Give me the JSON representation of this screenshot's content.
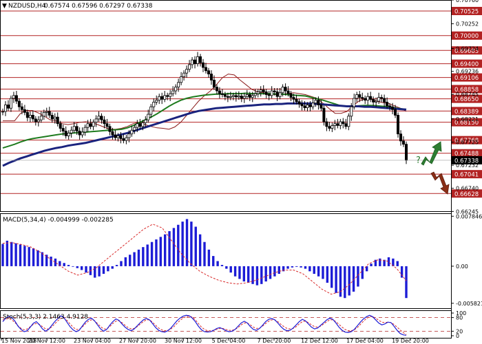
{
  "header": {
    "symbol": "NZDUSD,H4",
    "ohlc": "0.67574 0.67596 0.67297 0.67338"
  },
  "colors": {
    "up_candle": "#ffffff",
    "down_candle": "#000000",
    "ma_fast": "#8b1a1a",
    "ma_mid": "#1e7b1e",
    "ma_slow": "#1a237e",
    "level_line": "#b22222",
    "macd_hist": "#1c1cd6",
    "macd_signal": "#d92b2b",
    "stoch_main": "#1c1cd6",
    "stoch_signal": "#d92b2b",
    "arrow_up": "#2e7d32",
    "arrow_down": "#8b2e16",
    "price_tag": "#000000"
  },
  "chart_data": [
    {
      "type": "candlestick",
      "title": "NZDUSD,H4",
      "ylim": [
        0.6625,
        0.7076
      ],
      "price_ticks": [
        "0.70760",
        "0.70252",
        "0.69724",
        "0.69236",
        "0.68745",
        "0.68221",
        "0.67725",
        "0.67232",
        "0.66740",
        "0.66245"
      ],
      "resistance_levels": [
        "0.70525",
        "0.70000",
        "0.69683",
        "0.69400",
        "0.69106",
        "0.68858",
        "0.68650",
        "0.68389",
        "0.68150",
        "0.67768",
        "0.67488",
        "0.67041",
        "0.66628"
      ],
      "current_price": "0.67338",
      "x_labels": [
        "15 Nov 2018",
        "20 Nov 12:00",
        "23 Nov 04:00",
        "27 Nov 20:00",
        "30 Nov 12:00",
        "5 Dec 04:00",
        "7 Dec 20:00",
        "12 Dec 12:00",
        "17 Dec 04:00",
        "19 Dec 20:00"
      ],
      "forecast": {
        "up_label": "?",
        "scenarios": [
          "up",
          "down"
        ]
      },
      "series": [
        {
          "name": "close",
          "values": [
            0.6838,
            0.6852,
            0.6845,
            0.6866,
            0.6872,
            0.686,
            0.6848,
            0.6842,
            0.6836,
            0.6825,
            0.683,
            0.6822,
            0.6816,
            0.682,
            0.6828,
            0.6836,
            0.6838,
            0.683,
            0.6822,
            0.6826,
            0.6812,
            0.6802,
            0.6796,
            0.6786,
            0.6792,
            0.6798,
            0.6806,
            0.6796,
            0.6788,
            0.6794,
            0.6804,
            0.6812,
            0.6806,
            0.6815,
            0.6822,
            0.6828,
            0.682,
            0.6812,
            0.6806,
            0.6795,
            0.6788,
            0.6782,
            0.6786,
            0.678,
            0.6776,
            0.6782,
            0.679,
            0.6798,
            0.6804,
            0.6812,
            0.6806,
            0.6814,
            0.682,
            0.6832,
            0.6848,
            0.6858,
            0.6862,
            0.687,
            0.6864,
            0.6872,
            0.687,
            0.6876,
            0.6882,
            0.689,
            0.69,
            0.6912,
            0.692,
            0.6928,
            0.6938,
            0.6948,
            0.694,
            0.6955,
            0.6942,
            0.6932,
            0.6925,
            0.6918,
            0.6905,
            0.689,
            0.6882,
            0.6876,
            0.6874,
            0.687,
            0.6868,
            0.687,
            0.6872,
            0.6869,
            0.6871,
            0.6866,
            0.687,
            0.6874,
            0.6868,
            0.6872,
            0.6876,
            0.688,
            0.6884,
            0.688,
            0.6874,
            0.6872,
            0.6882,
            0.688,
            0.687,
            0.6878,
            0.689,
            0.6882,
            0.6876,
            0.6868,
            0.6864,
            0.6859,
            0.6854,
            0.685,
            0.6846,
            0.6852,
            0.6848,
            0.6856,
            0.6862,
            0.6852,
            0.6845,
            0.6816,
            0.6806,
            0.6802,
            0.6808,
            0.6812,
            0.6808,
            0.6816,
            0.6812,
            0.6806,
            0.6828,
            0.6848,
            0.6866,
            0.6874,
            0.6868,
            0.6866,
            0.6862,
            0.687,
            0.6864,
            0.6858,
            0.686,
            0.6868,
            0.6866,
            0.6858,
            0.685,
            0.6848,
            0.6842,
            0.683,
            0.679,
            0.6775,
            0.6768,
            0.67338
          ]
        },
        {
          "name": "MA fast",
          "values": [
            0.6818,
            0.6818,
            0.6818,
            0.6834,
            0.684,
            0.684,
            0.6835,
            0.6828,
            0.682,
            0.6818,
            0.6812,
            0.681,
            0.6812,
            0.6815,
            0.6816,
            0.6814,
            0.681,
            0.6805,
            0.68,
            0.68,
            0.6802,
            0.6806,
            0.6812,
            0.6815,
            0.681,
            0.6806,
            0.6803,
            0.6802,
            0.68,
            0.6805,
            0.6815,
            0.683,
            0.6845,
            0.686,
            0.6872,
            0.6882,
            0.6895,
            0.691,
            0.6918,
            0.6916,
            0.6905,
            0.6895,
            0.6885,
            0.688,
            0.6878,
            0.6875,
            0.6874,
            0.6875,
            0.6876,
            0.6878,
            0.6876,
            0.6874,
            0.687,
            0.6866,
            0.6855,
            0.6844,
            0.6834,
            0.6834,
            0.6838,
            0.685,
            0.686,
            0.6865,
            0.6864,
            0.686,
            0.6857,
            0.6855,
            0.685,
            0.6845,
            0.6838
          ]
        },
        {
          "name": "MA mid",
          "values": [
            0.676,
            0.6764,
            0.6768,
            0.6773,
            0.6777,
            0.678,
            0.6782,
            0.6784,
            0.6786,
            0.6788,
            0.679,
            0.6791,
            0.6792,
            0.6793,
            0.6794,
            0.6795,
            0.6796,
            0.6797,
            0.6798,
            0.6799,
            0.68,
            0.6803,
            0.6808,
            0.6814,
            0.682,
            0.6826,
            0.6833,
            0.6841,
            0.6849,
            0.6856,
            0.6862,
            0.6866,
            0.6869,
            0.6871,
            0.6873,
            0.6874,
            0.6875,
            0.6875,
            0.6876,
            0.6876,
            0.6876,
            0.6877,
            0.6876,
            0.6876,
            0.6876,
            0.6876,
            0.6875,
            0.6875,
            0.6874,
            0.6873,
            0.6872,
            0.6871,
            0.6868,
            0.6865,
            0.6862,
            0.6858,
            0.6854,
            0.685,
            0.6849,
            0.6849,
            0.685,
            0.6851,
            0.6851,
            0.685,
            0.6849,
            0.6848,
            0.6846,
            0.6844,
            0.6842
          ]
        },
        {
          "name": "MA slow",
          "values": [
            0.6722,
            0.6728,
            0.6733,
            0.6738,
            0.6742,
            0.6746,
            0.675,
            0.6754,
            0.6757,
            0.676,
            0.6762,
            0.6765,
            0.6767,
            0.6769,
            0.6771,
            0.6774,
            0.6777,
            0.678,
            0.6783,
            0.6786,
            0.6789,
            0.6792,
            0.6796,
            0.68,
            0.6804,
            0.6808,
            0.6812,
            0.6816,
            0.682,
            0.6824,
            0.6828,
            0.6832,
            0.6836,
            0.6839,
            0.6841,
            0.6843,
            0.6845,
            0.6846,
            0.6847,
            0.6848,
            0.6849,
            0.685,
            0.6851,
            0.6852,
            0.6853,
            0.6853,
            0.6854,
            0.6854,
            0.6855,
            0.6855,
            0.6855,
            0.6855,
            0.6855,
            0.6854,
            0.6853,
            0.6852,
            0.6851,
            0.685,
            0.6849,
            0.6849,
            0.6849,
            0.6848,
            0.6848,
            0.6847,
            0.6846,
            0.6845,
            0.6844,
            0.6843,
            0.6842
          ]
        }
      ]
    },
    {
      "type": "bar",
      "title": "MACD(5,34,4) -0.004999 -0.002285",
      "ylim": [
        -0.0066,
        0.0082
      ],
      "ticks": [
        "0.007846",
        "0.00",
        "-0.005821"
      ],
      "series": [
        {
          "name": "histogram",
          "values": [
            0.0035,
            0.004,
            0.0038,
            0.0036,
            0.0034,
            0.0032,
            0.003,
            0.0028,
            0.0025,
            0.0022,
            0.0018,
            0.0015,
            0.0012,
            0.0008,
            0.0005,
            0.0002,
            0.0,
            -0.0003,
            -0.0006,
            -0.001,
            -0.0014,
            -0.0018,
            -0.0016,
            -0.0012,
            -0.0008,
            -0.0004,
            0.0002,
            0.0008,
            0.0014,
            0.0018,
            0.0022,
            0.0026,
            0.003,
            0.0034,
            0.0038,
            0.0042,
            0.0046,
            0.005,
            0.0055,
            0.006,
            0.0065,
            0.007,
            0.0074,
            0.007,
            0.0062,
            0.005,
            0.0038,
            0.0026,
            0.0016,
            0.0008,
            0.0002,
            -0.0004,
            -0.001,
            -0.0016,
            -0.002,
            -0.0024,
            -0.0026,
            -0.0028,
            -0.003,
            -0.0028,
            -0.0024,
            -0.002,
            -0.0016,
            -0.0012,
            -0.0008,
            -0.0004,
            -0.0002,
            -0.0001,
            -0.0002,
            -0.0004,
            -0.0008,
            -0.0012,
            -0.0016,
            -0.002,
            -0.0026,
            -0.0034,
            -0.0042,
            -0.0048,
            -0.005,
            -0.0046,
            -0.004,
            -0.0032,
            -0.002,
            -0.0008,
            0.0004,
            0.001,
            0.0012,
            0.001,
            0.0014,
            0.0012,
            0.0008,
            -0.0018,
            -0.005
          ]
        },
        {
          "name": "signal",
          "values": [
            0.0036,
            0.0037,
            0.0034,
            0.003,
            0.0022,
            0.0012,
            0.0002,
            -0.0008,
            -0.0014,
            -0.001,
            -0.0002,
            0.001,
            0.0022,
            0.0034,
            0.0046,
            0.0058,
            0.0066,
            0.006,
            0.004,
            0.002,
            0.0004,
            -0.0008,
            -0.0016,
            -0.0022,
            -0.0026,
            -0.0028,
            -0.0026,
            -0.0022,
            -0.0016,
            -0.001,
            -0.0006,
            -0.0006,
            -0.0012,
            -0.0024,
            -0.0036,
            -0.0044,
            -0.004,
            -0.0028,
            -0.0012,
            0.0004,
            0.001,
            0.0008,
            -0.0004,
            -0.0023
          ]
        }
      ]
    },
    {
      "type": "line",
      "title": "Stoch(5,3,3) 2.1463 4.9128",
      "ylim": [
        0,
        100
      ],
      "levels": [
        20,
        80
      ],
      "ticks": [
        "100",
        "80",
        "20",
        "0"
      ],
      "series": [
        {
          "name": "main",
          "values": [
            62,
            78,
            85,
            80,
            64,
            42,
            28,
            18,
            22,
            38,
            55,
            62,
            48,
            30,
            20,
            28,
            45,
            62,
            76,
            88,
            80,
            60,
            40,
            26,
            18,
            24,
            42,
            60,
            72,
            78,
            66,
            48,
            30,
            20,
            28,
            46,
            62,
            74,
            68,
            52,
            38,
            28,
            22,
            30,
            44,
            58,
            70,
            76,
            70,
            54,
            36,
            24,
            18,
            16,
            22,
            34,
            50,
            66,
            78,
            86,
            90,
            88,
            78,
            62,
            42,
            26,
            18,
            16,
            18,
            24,
            32,
            36,
            30,
            22,
            18,
            20,
            28,
            42,
            56,
            64,
            56,
            40,
            28,
            24,
            32,
            46,
            62,
            72,
            76,
            70,
            56,
            40,
            28,
            22,
            24,
            34,
            48,
            62,
            72,
            66,
            52,
            38,
            30,
            34,
            46,
            58,
            70,
            78,
            72,
            56,
            38,
            24,
            16,
            14,
            18,
            28,
            44,
            60,
            74,
            84,
            90,
            84,
            70,
            56,
            48,
            52,
            60,
            58,
            42,
            24,
            10,
            4,
            2
          ]
        },
        {
          "name": "signal",
          "values": [
            70,
            74,
            76,
            70,
            58,
            44,
            32,
            26,
            30,
            40,
            50,
            54,
            50,
            40,
            30,
            30,
            38,
            52,
            66,
            76,
            78,
            68,
            52,
            38,
            28,
            28,
            38,
            52,
            64,
            70,
            66,
            54,
            40,
            30,
            30,
            40,
            54,
            64,
            66,
            58,
            46,
            36,
            30,
            32,
            40,
            52,
            62,
            70,
            70,
            60,
            46,
            34,
            26,
            22,
            24,
            30,
            40,
            54,
            68,
            78,
            84,
            86,
            82,
            70,
            54,
            38,
            28,
            22,
            22,
            24,
            28,
            32,
            32,
            28,
            24,
            24,
            28,
            36,
            48,
            56,
            56,
            48,
            38,
            32,
            34,
            42,
            54,
            64,
            70,
            70,
            62,
            50,
            40,
            32,
            30,
            32,
            40,
            52,
            62,
            64,
            58,
            48,
            40,
            38,
            42,
            52,
            62,
            70,
            70,
            62,
            50,
            38,
            28,
            22,
            22,
            26,
            36,
            50,
            64,
            76,
            84,
            84,
            78,
            68,
            60,
            58,
            60,
            58,
            50,
            38,
            26,
            14,
            5
          ]
        }
      ]
    }
  ]
}
